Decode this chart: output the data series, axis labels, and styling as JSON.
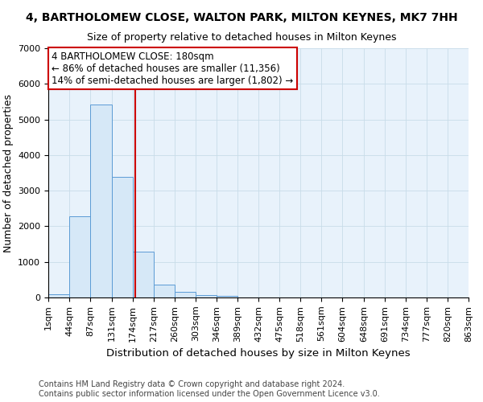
{
  "title": "4, BARTHOLOMEW CLOSE, WALTON PARK, MILTON KEYNES, MK7 7HH",
  "subtitle": "Size of property relative to detached houses in Milton Keynes",
  "xlabel": "Distribution of detached houses by size in Milton Keynes",
  "ylabel": "Number of detached properties",
  "property_size": 180,
  "property_label": "4 BARTHOLOMEW CLOSE: 180sqm",
  "annotation_line1": "← 86% of detached houses are smaller (11,356)",
  "annotation_line2": "14% of semi-detached houses are larger (1,802) →",
  "footnote1": "Contains HM Land Registry data © Crown copyright and database right 2024.",
  "footnote2": "Contains public sector information licensed under the Open Government Licence v3.0.",
  "bin_edges": [
    1,
    44,
    87,
    131,
    174,
    217,
    260,
    303,
    346,
    389,
    432,
    475,
    518,
    561,
    604,
    648,
    691,
    734,
    777,
    820,
    863
  ],
  "bin_labels": [
    "1sqm",
    "44sqm",
    "87sqm",
    "131sqm",
    "174sqm",
    "217sqm",
    "260sqm",
    "303sqm",
    "346sqm",
    "389sqm",
    "432sqm",
    "475sqm",
    "518sqm",
    "561sqm",
    "604sqm",
    "648sqm",
    "691sqm",
    "734sqm",
    "777sqm",
    "820sqm",
    "863sqm"
  ],
  "counts": [
    80,
    2280,
    5430,
    3380,
    1280,
    370,
    155,
    65,
    45,
    0,
    0,
    0,
    0,
    0,
    0,
    0,
    0,
    0,
    0,
    0
  ],
  "bar_facecolor": "#d6e8f7",
  "bar_edgecolor": "#5b9bd5",
  "vline_color": "#cc0000",
  "annotation_box_color": "#cc0000",
  "ylim": [
    0,
    7000
  ],
  "yticks": [
    0,
    1000,
    2000,
    3000,
    4000,
    5000,
    6000,
    7000
  ],
  "grid_color": "#c8dce8",
  "background_color": "#e8f2fb",
  "title_fontsize": 10,
  "subtitle_fontsize": 9,
  "axis_label_fontsize": 9,
  "tick_fontsize": 8,
  "annotation_fontsize": 8.5,
  "footnote_fontsize": 7
}
